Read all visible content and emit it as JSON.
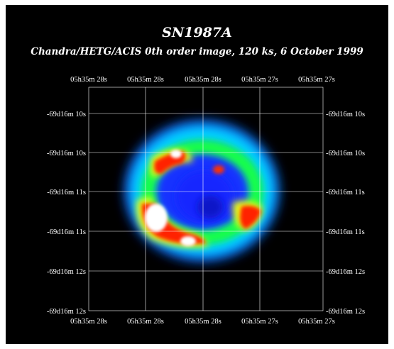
{
  "image": {
    "title": "SN1987A",
    "subtitle": "Chandra/HETG/ACIS 0th order image, 120 ks, 6 October 1999",
    "background_color": "#000000",
    "grid_color": "#ffffff",
    "colormap": [
      "#1a1aff",
      "#00e5ff",
      "#00ff55",
      "#ffff00",
      "#ff2200",
      "#ffffff"
    ],
    "top_ra_labels": [
      "05h35m 28s",
      "05h35m 28s",
      "05h35m 28s",
      "05h35m 27s",
      "05h35m 27s"
    ],
    "bottom_ra_labels": [
      "05h35m 28s",
      "05h35m 28s",
      "05h35m 28s",
      "05h35m 27s",
      "05h35m 27s"
    ],
    "left_dec_labels": [
      "-69d16m 10s",
      "-69d16m 10s",
      "-69d16m 11s",
      "-69d16m 11s",
      "-69d16m 12s",
      "-69d16m 12s"
    ],
    "right_dec_labels": [
      "-69d16m 10s",
      "-69d16m 10s",
      "-69d16m 11s",
      "-69d16m 11s",
      "-69d16m 12s",
      "-69d16m 12s"
    ]
  }
}
